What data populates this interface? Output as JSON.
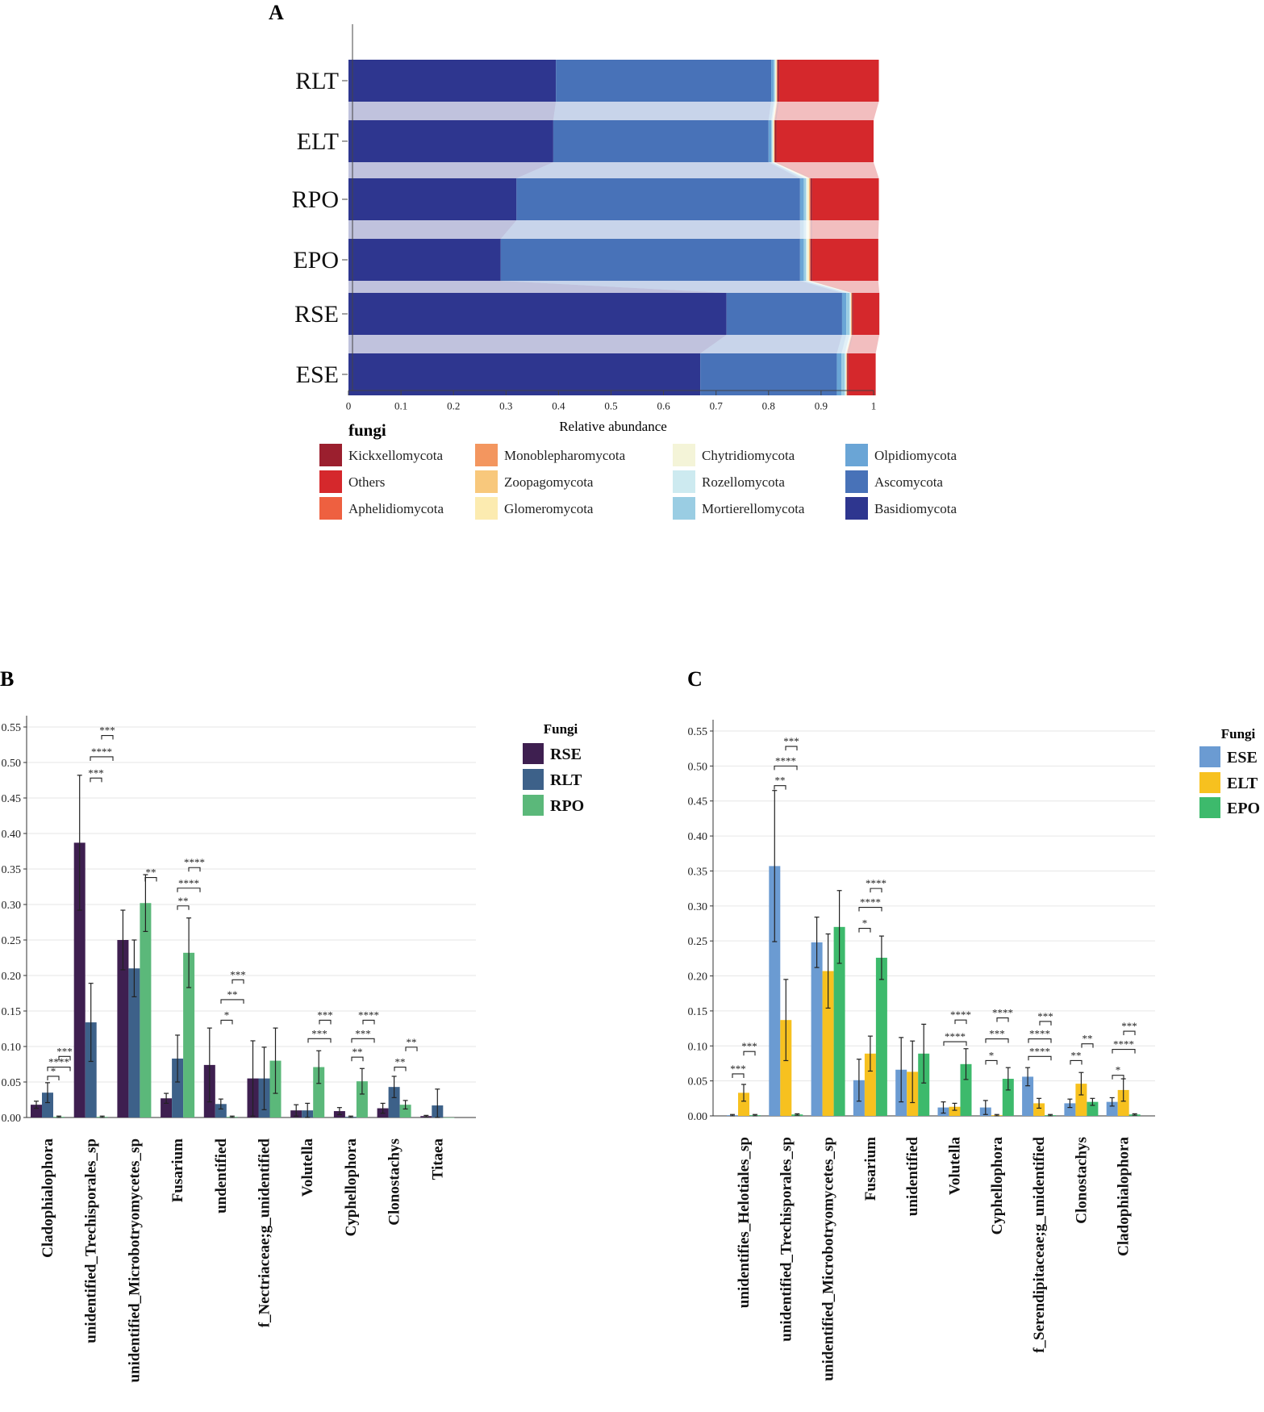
{
  "panel_a": {
    "label": "A",
    "legend_title": "fungi",
    "legend_items": [
      {
        "name": "Kickxellomycota",
        "color": "#9b1f2e"
      },
      {
        "name": "Others",
        "color": "#d5282c"
      },
      {
        "name": "Aphelidiomycota",
        "color": "#ee6040"
      },
      {
        "name": "Monoblepharomycota",
        "color": "#f3965f"
      },
      {
        "name": "Zoopagomycota",
        "color": "#f8c87c"
      },
      {
        "name": "Glomeromycota",
        "color": "#fcebb0"
      },
      {
        "name": "Chytridiomycota",
        "color": "#f4f4d8"
      },
      {
        "name": "Rozellomycota",
        "color": "#cdeaf0"
      },
      {
        "name": "Mortierellomycota",
        "color": "#9acde3"
      },
      {
        "name": "Olpidiomycota",
        "color": "#6aa5d6"
      },
      {
        "name": "Ascomycota",
        "color": "#4872b8"
      },
      {
        "name": "Basidiomycota",
        "color": "#2e368f"
      }
    ]
  },
  "panel_b": {
    "label": "B",
    "legend_title": "Fungi"
  },
  "panel_c": {
    "label": "C",
    "legend_title": "Fungi"
  },
  "chart_data": [
    {
      "type": "bar",
      "orientation": "horizontal",
      "stacked": true,
      "xlabel": "Relative abundance",
      "xlim": [
        0,
        1
      ],
      "xticks": [
        "0",
        "0.1",
        "0.2",
        "0.3",
        "0.4",
        "0.5",
        "0.6",
        "0.7",
        "0.8",
        "0.9",
        "1"
      ],
      "categories": [
        "RLT",
        "ELT",
        "RPO",
        "EPO",
        "RSE",
        "ESE"
      ],
      "series": [
        {
          "name": "Basidiomycota",
          "color": "#2e368f",
          "values": [
            0.395,
            0.39,
            0.32,
            0.29,
            0.72,
            0.67
          ]
        },
        {
          "name": "Ascomycota",
          "color": "#4872b8",
          "values": [
            0.41,
            0.41,
            0.54,
            0.57,
            0.22,
            0.26
          ]
        },
        {
          "name": "Olpidiomycota",
          "color": "#6aa5d6",
          "values": [
            0.005,
            0.005,
            0.007,
            0.007,
            0.008,
            0.009
          ]
        },
        {
          "name": "Mortierellomycota",
          "color": "#9acde3",
          "values": [
            0.002,
            0.002,
            0.004,
            0.004,
            0.006,
            0.006
          ]
        },
        {
          "name": "Rozellomycota",
          "color": "#cdeaf0",
          "values": [
            0.001,
            0.001,
            0.002,
            0.002,
            0.002,
            0.002
          ]
        },
        {
          "name": "Chytridiomycota",
          "color": "#f4f4d8",
          "values": [
            0.002,
            0.002,
            0.003,
            0.003,
            0.001,
            0.001
          ]
        },
        {
          "name": "Glomeromycota",
          "color": "#fcebb0",
          "values": [
            0.0,
            0.0,
            0.001,
            0.001,
            0.0,
            0.0
          ]
        },
        {
          "name": "Zoopagomycota",
          "color": "#f8c87c",
          "values": [
            0.001,
            0.001,
            0.001,
            0.001,
            0.001,
            0.001
          ]
        },
        {
          "name": "Monoblepharomycota",
          "color": "#f3965f",
          "values": [
            0.0,
            0.0,
            0.001,
            0.001,
            0.0,
            0.0
          ]
        },
        {
          "name": "Aphelidiomycota",
          "color": "#ee6040",
          "values": [
            0.001,
            0.001,
            0.001,
            0.001,
            0.001,
            0.001
          ]
        },
        {
          "name": "Kickxellomycota",
          "color": "#9b1f2e",
          "values": [
            0.003,
            0.003,
            0.003,
            0.003,
            0.002,
            0.002
          ]
        },
        {
          "name": "Others",
          "color": "#d5282c",
          "values": [
            0.19,
            0.185,
            0.127,
            0.126,
            0.05,
            0.052
          ]
        }
      ]
    },
    {
      "type": "bar",
      "title": "",
      "legend_title": "Fungi",
      "ylim": [
        0,
        0.55
      ],
      "yticks": [
        "0.00",
        "0.05",
        "0.10",
        "0.15",
        "0.20",
        "0.25",
        "0.30",
        "0.35",
        "0.40",
        "0.45",
        "0.50",
        "0.55"
      ],
      "categories": [
        "Cladophialophora",
        "unidentified_Trechisporales_sp",
        "unidentified_Microbotryomycetes_sp",
        "Fusarium",
        "undentified",
        "f_Nectriaceae;g_unidentified",
        "Volutella",
        "Cyphellophora",
        "Clonostachys",
        "Titaea"
      ],
      "series": [
        {
          "name": "RSE",
          "color": "#3e1f50",
          "values": [
            0.018,
            0.387,
            0.25,
            0.027,
            0.074,
            0.055,
            0.01,
            0.009,
            0.013,
            0.002
          ],
          "errors": [
            0.005,
            0.095,
            0.042,
            0.007,
            0.052,
            0.053,
            0.008,
            0.005,
            0.007,
            0.001
          ]
        },
        {
          "name": "RLT",
          "color": "#3d6189",
          "values": [
            0.035,
            0.134,
            0.21,
            0.083,
            0.019,
            0.055,
            0.01,
            0.001,
            0.043,
            0.017
          ],
          "errors": [
            0.014,
            0.055,
            0.04,
            0.033,
            0.007,
            0.044,
            0.01,
            0.001,
            0.015,
            0.023
          ]
        },
        {
          "name": "RPO",
          "color": "#5bb87a",
          "values": [
            0.001,
            0.001,
            0.302,
            0.232,
            0.001,
            0.08,
            0.071,
            0.051,
            0.018,
            0.0
          ],
          "errors": [
            0.001,
            0.001,
            0.04,
            0.049,
            0.001,
            0.046,
            0.023,
            0.018,
            0.006,
            0.0
          ]
        }
      ],
      "annotations": [
        "*",
        "****",
        "***",
        "***",
        "****",
        "***",
        "**",
        "**",
        "****",
        "****",
        "*",
        "**",
        "***",
        "***",
        "***",
        "**",
        "***",
        "****",
        "**",
        "**"
      ]
    },
    {
      "type": "bar",
      "title": "",
      "legend_title": "Fungi",
      "ylim": [
        0,
        0.55
      ],
      "yticks": [
        "0.00",
        "0.05",
        "0.10",
        "0.15",
        "0.20",
        "0.25",
        "0.30",
        "0.35",
        "0.40",
        "0.45",
        "0.50",
        "0.55"
      ],
      "categories": [
        "unidentifies_Helotiales_sp",
        "unidentified_Trechisporales_sp",
        "unidentified_Microbotryomycetes_sp",
        "Fusarium",
        "unidentified",
        "Volutella",
        "Cyphellophora",
        "f_Serendipitaceae;g_unidentified",
        "Clonostachys",
        "Cladophialophora"
      ],
      "series": [
        {
          "name": "ESE",
          "color": "#6b9bd2",
          "values": [
            0.001,
            0.357,
            0.248,
            0.051,
            0.066,
            0.012,
            0.012,
            0.056,
            0.018,
            0.02
          ],
          "errors": [
            0.001,
            0.108,
            0.036,
            0.03,
            0.046,
            0.008,
            0.01,
            0.013,
            0.006,
            0.006
          ]
        },
        {
          "name": "ELT",
          "color": "#f7c11f",
          "values": [
            0.033,
            0.137,
            0.207,
            0.089,
            0.063,
            0.013,
            0.001,
            0.018,
            0.046,
            0.037
          ],
          "errors": [
            0.012,
            0.058,
            0.053,
            0.025,
            0.044,
            0.005,
            0.001,
            0.007,
            0.016,
            0.016
          ]
        },
        {
          "name": "EPO",
          "color": "#3dba6c",
          "values": [
            0.001,
            0.002,
            0.27,
            0.226,
            0.089,
            0.074,
            0.053,
            0.001,
            0.02,
            0.002
          ],
          "errors": [
            0.001,
            0.001,
            0.052,
            0.031,
            0.042,
            0.022,
            0.016,
            0.001,
            0.005,
            0.001
          ]
        }
      ],
      "annotations": [
        "***",
        "***",
        "**",
        "****",
        "***",
        "*",
        "****",
        "****",
        "****",
        "****",
        "*",
        "***",
        "****",
        "****",
        "****",
        "***",
        "**",
        "**",
        "*",
        "****",
        "***"
      ]
    }
  ]
}
